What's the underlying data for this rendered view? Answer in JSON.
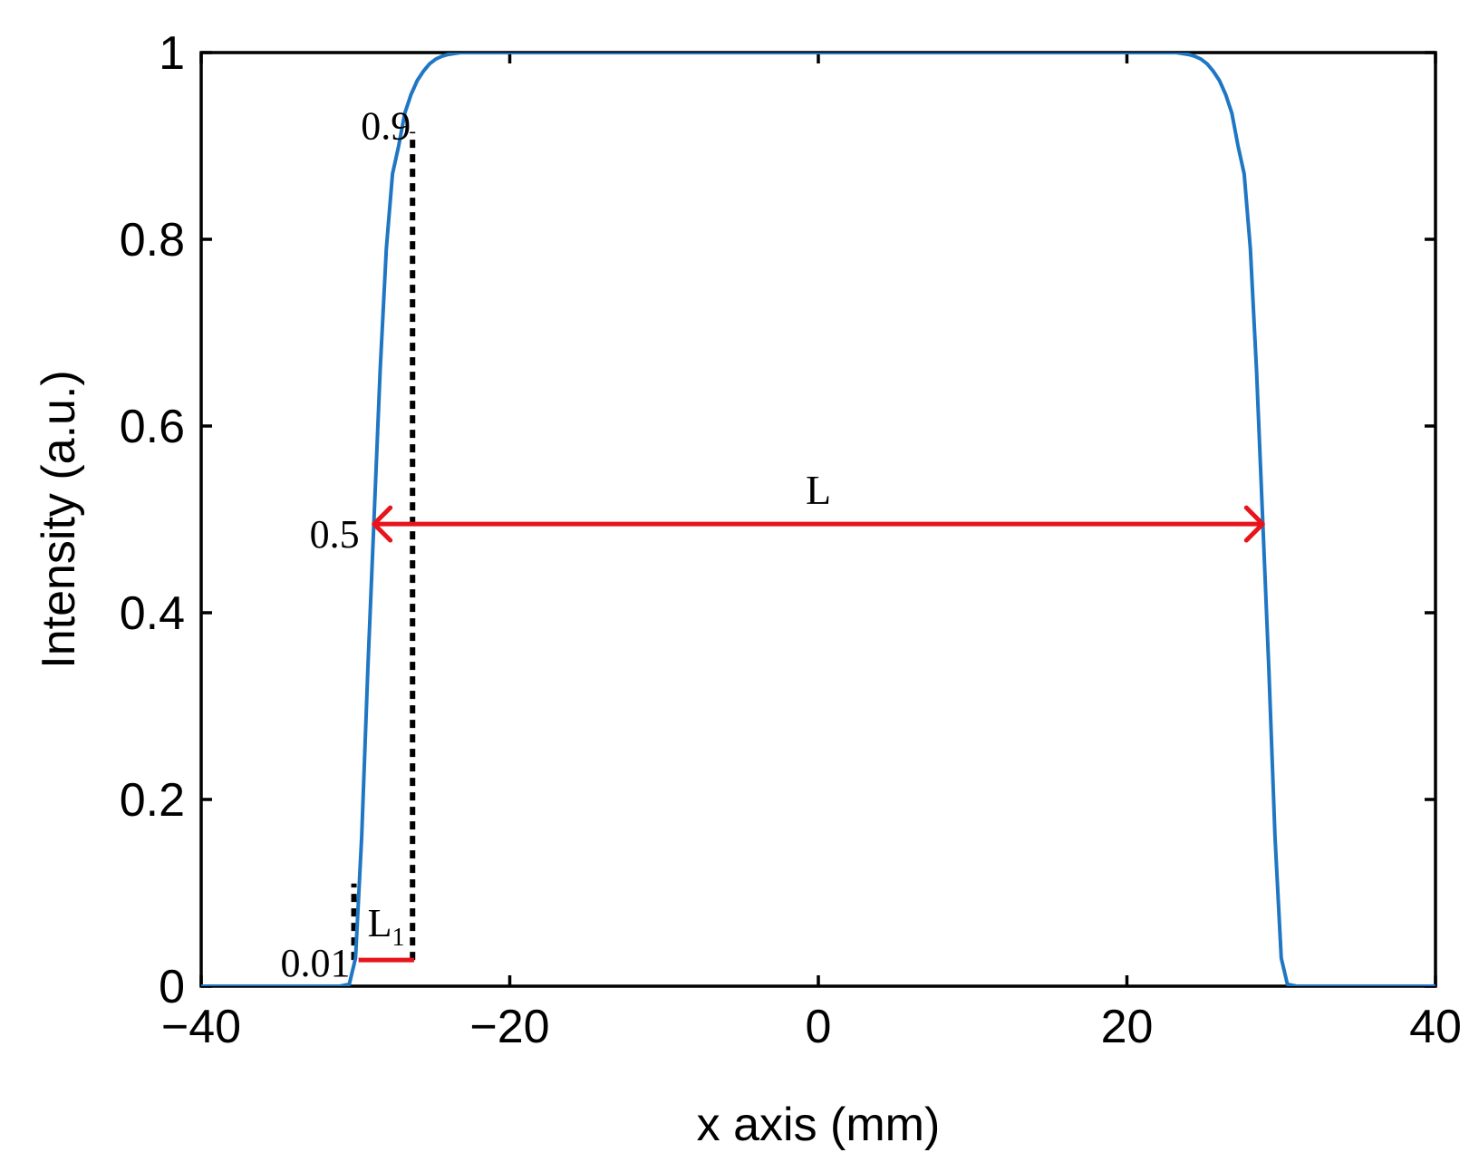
{
  "chart_data": {
    "type": "line",
    "title": "",
    "xlabel": "x axis (mm)",
    "ylabel": "Intensity (a.u.)",
    "xlim": [
      -40,
      40
    ],
    "ylim": [
      0,
      1
    ],
    "x_ticks": [
      -40,
      -20,
      0,
      20,
      40
    ],
    "x_tick_labels": [
      "−40",
      "−20",
      "0",
      "20",
      "40"
    ],
    "y_ticks": [
      0,
      0.2,
      0.4,
      0.6,
      0.8,
      1
    ],
    "y_tick_labels": [
      "0",
      "0.2",
      "0.4",
      "0.6",
      "0.8",
      "1"
    ],
    "grid": false,
    "series": [
      {
        "color": "#1f77c4",
        "x": [
          -40,
          -31,
          -30.4,
          -30,
          -29.6,
          -29.2,
          -28.8,
          -28.4,
          -28,
          -27.6,
          -27.2,
          -26.8,
          -26.4,
          -26,
          -25.6,
          -25.2,
          -24.8,
          -24.4,
          -24,
          -23.2,
          -22.4,
          0,
          22.4,
          23.2,
          24,
          24.4,
          24.8,
          25.2,
          25.6,
          26,
          26.4,
          26.8,
          27.2,
          27.6,
          28,
          28.4,
          28.8,
          29.2,
          29.6,
          30,
          30.4,
          31,
          40
        ],
        "y": [
          0,
          0,
          0.002,
          0.03,
          0.16,
          0.34,
          0.5,
          0.66,
          0.79,
          0.87,
          0.9,
          0.935,
          0.955,
          0.97,
          0.98,
          0.988,
          0.993,
          0.996,
          0.998,
          1,
          1,
          1,
          1,
          1,
          0.998,
          0.996,
          0.993,
          0.988,
          0.98,
          0.97,
          0.955,
          0.935,
          0.9,
          0.87,
          0.79,
          0.66,
          0.5,
          0.34,
          0.16,
          0.03,
          0.002,
          0,
          0
        ]
      }
    ],
    "annotations": {
      "level_09": {
        "text": "0.9",
        "x": -26.8,
        "y": 0.915
      },
      "level_05": {
        "text": "0.5",
        "y": 0.5
      },
      "level_001": {
        "text": "0.01"
      },
      "full_width": {
        "text": "L",
        "x1": -28.8,
        "x2": 28.8,
        "y": 0.495,
        "color": "#e8141c"
      },
      "edge_width": {
        "text": "L",
        "subscript": "1",
        "x1": -29.8,
        "x2": -26.2,
        "y": 0.028,
        "color": "#e8141c"
      },
      "dotted_line_09": {
        "x": -26.3,
        "y_from": 0.028,
        "y_to": 0.915
      },
      "dotted_line_001": {
        "x": -30.1,
        "y_from": 0.028,
        "y_to": 0.11
      }
    }
  }
}
